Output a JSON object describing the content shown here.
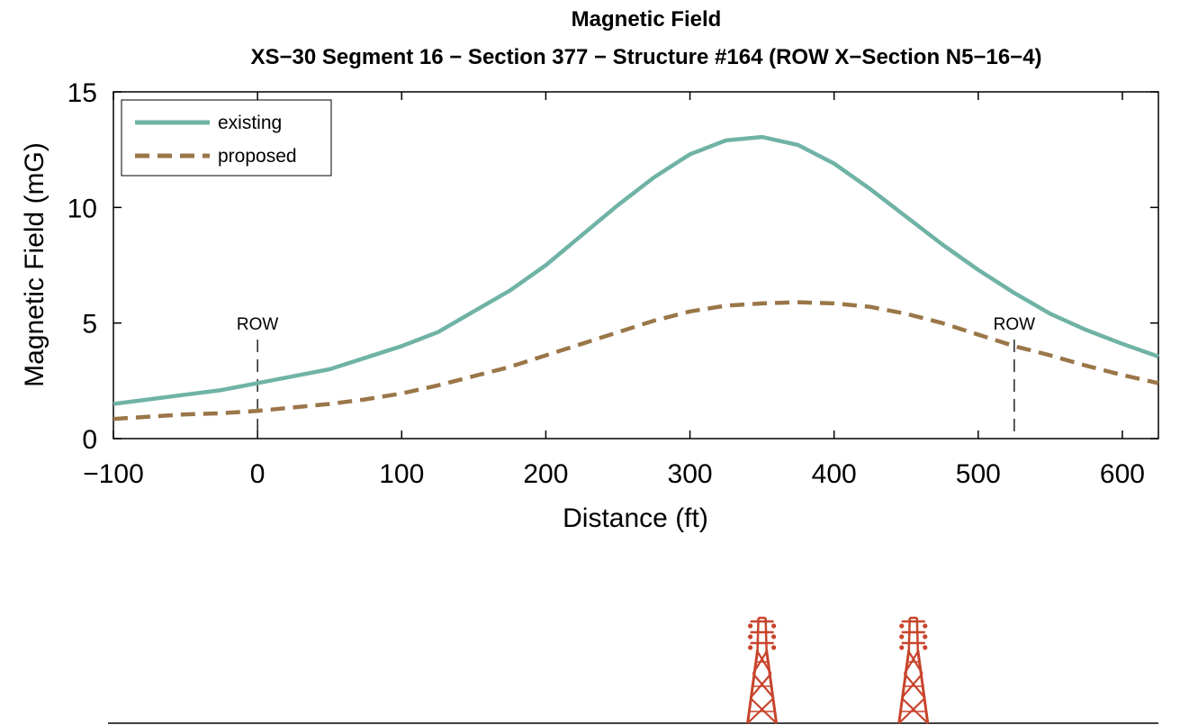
{
  "chart_data": {
    "type": "line",
    "title": "Magnetic Field",
    "subtitle": "XS−30 Segment 16 − Section 377 − Structure #164 (ROW X−Section N5−16−4)",
    "xlabel": "Distance (ft)",
    "ylabel": "Magnetic Field (mG)",
    "xlim": [
      -100,
      625
    ],
    "ylim": [
      0,
      15
    ],
    "xticks": [
      -100,
      0,
      100,
      200,
      300,
      400,
      500,
      600
    ],
    "xtick_labels": [
      "−100",
      "0",
      "100",
      "200",
      "300",
      "400",
      "500",
      "600"
    ],
    "yticks": [
      0,
      5,
      10,
      15
    ],
    "ytick_labels": [
      "0",
      "5",
      "10",
      "15"
    ],
    "grid": false,
    "legend": "top-left",
    "series": [
      {
        "name": "existing",
        "color": "#6fb3a6",
        "style": "solid",
        "x": [
          -100,
          -75,
          -50,
          -25,
          0,
          25,
          50,
          75,
          100,
          125,
          150,
          175,
          200,
          225,
          250,
          275,
          300,
          325,
          350,
          375,
          400,
          425,
          450,
          475,
          500,
          525,
          550,
          575,
          600,
          625
        ],
        "y": [
          1.5,
          1.7,
          1.9,
          2.1,
          2.4,
          2.7,
          3.0,
          3.5,
          4.0,
          4.6,
          5.5,
          6.4,
          7.5,
          8.8,
          10.1,
          11.3,
          12.3,
          12.9,
          13.05,
          12.7,
          11.9,
          10.8,
          9.6,
          8.4,
          7.3,
          6.3,
          5.4,
          4.7,
          4.1,
          3.55
        ]
      },
      {
        "name": "proposed",
        "color": "#9a7648",
        "style": "dashed",
        "x": [
          -100,
          -75,
          -50,
          -25,
          0,
          25,
          50,
          75,
          100,
          125,
          150,
          175,
          200,
          225,
          250,
          275,
          300,
          325,
          350,
          375,
          400,
          425,
          450,
          475,
          500,
          525,
          550,
          575,
          600,
          625
        ],
        "y": [
          0.85,
          0.95,
          1.05,
          1.1,
          1.2,
          1.35,
          1.5,
          1.7,
          1.95,
          2.3,
          2.7,
          3.1,
          3.6,
          4.1,
          4.6,
          5.1,
          5.5,
          5.75,
          5.85,
          5.9,
          5.85,
          5.7,
          5.4,
          5.0,
          4.5,
          4.0,
          3.6,
          3.15,
          2.75,
          2.4
        ]
      }
    ],
    "annotations": [
      {
        "text": "ROW",
        "x": 0
      },
      {
        "text": "ROW",
        "x": 525
      }
    ],
    "structures": [
      {
        "name": "transmission-tower",
        "x": 350,
        "color": "#c8442c"
      },
      {
        "name": "transmission-tower",
        "x": 455,
        "color": "#c8442c"
      }
    ]
  }
}
